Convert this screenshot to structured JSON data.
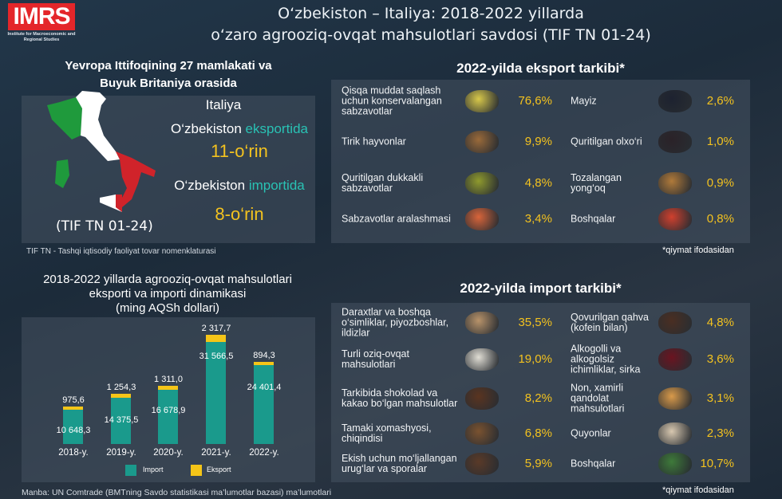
{
  "header": {
    "logo_text": "IMRS",
    "logo_sub": "Institute for Macroeconomic and Regional Studies",
    "title_line1": "O‘zbekiston – Italiya: 2018-2022 yillarda",
    "title_line2": "o‘zaro agrooziq-ovqat mahsulotlari savdosi (TIF TN 01-24)"
  },
  "ranking": {
    "heading_line1": "Yevropa Ittifoqining 27 mamlakati va",
    "heading_line2": "Buyuk Britaniya orasida",
    "country": "Italiya",
    "export_prefix": "O‘zbekiston ",
    "export_word": "eksportida",
    "export_rank": "11-o‘rin",
    "import_prefix": "O‘zbekiston ",
    "import_word": "importida",
    "import_rank": "8-o‘rin",
    "code": "(TIF TN 01-24)",
    "footnote": "TIF TN - Tashqi iqtisodiy faoliyat tovar nomenklaturasi"
  },
  "colors": {
    "import": "#1a9a8c",
    "export": "#f5c518",
    "pct": "#f3c21f",
    "teal_text": "#29c2b4"
  },
  "export_structure": {
    "title": "2022-yilda eksport tarkibi*",
    "footnote": "*qiymat ifodasidan",
    "items": [
      {
        "label": "Qisqa muddat saqlash uchun konservalangan sabzavotlar",
        "pct": "76,6%",
        "icon": "canned-food-icon",
        "color": "#d8c84a"
      },
      {
        "label": "Tirik hayvonlar",
        "pct": "9,9%",
        "icon": "livestock-icon",
        "color": "#9a6a3a"
      },
      {
        "label": "Quritilgan dukkakli sabzavotlar",
        "pct": "4,8%",
        "icon": "mung-beans-icon",
        "color": "#8f9a2e"
      },
      {
        "label": "Sabzavotlar aralashmasi",
        "pct": "3,4%",
        "icon": "mixed-vegetables-icon",
        "color": "#d8643a"
      },
      {
        "label": "Mayiz",
        "pct": "2,6%",
        "icon": "raisins-icon",
        "color": "#1d2230"
      },
      {
        "label": "Quritilgan olxo‘ri",
        "pct": "1,0%",
        "icon": "prunes-icon",
        "color": "#2a2228"
      },
      {
        "label": "Tozalangan yong‘oq",
        "pct": "0,9%",
        "icon": "walnut-icon",
        "color": "#b07a3a"
      },
      {
        "label": "Boshqalar",
        "pct": "0,8%",
        "icon": "fruits-icon",
        "color": "#d0402e"
      }
    ]
  },
  "import_structure": {
    "title": "2022-yilda import tarkibi*",
    "footnote": "*qiymat ifodasidan",
    "items": [
      {
        "label": "Daraxtlar va boshqa o‘simliklar, piyozboshlar, ildizlar",
        "pct": "35,5%",
        "icon": "bulbs-icon",
        "color": "#b8936a"
      },
      {
        "label": "Turli oziq-ovqat mahsulotlari",
        "pct": "19,0%",
        "icon": "powder-icon",
        "color": "#e0ddd4"
      },
      {
        "label": "Tarkibida shokolad va kakao bo‘lgan mahsulotlar",
        "pct": "8,2%",
        "icon": "chocolate-icon",
        "color": "#5a3420"
      },
      {
        "label": "Tamaki xomashyosi, chiqindisi",
        "pct": "6,8%",
        "icon": "tobacco-icon",
        "color": "#7a5230"
      },
      {
        "label": "Ekish uchun mo‘ljallangan urug‘lar va sporalar",
        "pct": "5,9%",
        "icon": "seeds-icon",
        "color": "#5a3a28"
      },
      {
        "label": "Qovurilgan qahva (kofein bilan)",
        "pct": "4,8%",
        "icon": "coffee-beans-icon",
        "color": "#4a2e22"
      },
      {
        "label": "Alkogolli va alkogolsiz ichimliklar, sirka",
        "pct": "3,6%",
        "icon": "wine-icon",
        "color": "#6a1420"
      },
      {
        "label": "Non, xamirli qandolat mahsulotlari",
        "pct": "3,1%",
        "icon": "pastry-icon",
        "color": "#d99a4a"
      },
      {
        "label": "Quyonlar",
        "pct": "2,3%",
        "icon": "rabbit-icon",
        "color": "#d8c8b0"
      },
      {
        "label": "Boshqalar",
        "pct": "10,7%",
        "icon": "grocery-basket-icon",
        "color": "#3e7a3a"
      }
    ]
  },
  "chart_data": {
    "type": "bar",
    "stacked": true,
    "title": "2018-2022 yillarda agrooziq-ovqat mahsulotlari eksporti va importi dinamikasi (ming AQSh dollari)",
    "title_line1": "2018-2022 yillarda agrooziq-ovqat mahsulotlari",
    "title_line2": "eksporti va importi dinamikasi",
    "title_line3": "(ming AQSh dollari)",
    "categories": [
      "2018-y.",
      "2019-y.",
      "2020-y.",
      "2021-y.",
      "2022-y."
    ],
    "series": [
      {
        "name": "Import",
        "values": [
          10648.3,
          14375.5,
          16678.9,
          31566.5,
          24401.4
        ],
        "labels": [
          "10 648,3",
          "14 375,5",
          "16 678,9",
          "31 566,5",
          "24 401,4"
        ]
      },
      {
        "name": "Eksport",
        "values": [
          975.6,
          1254.3,
          1311.0,
          2317.7,
          894.3
        ],
        "labels": [
          "975,6",
          "1 254,3",
          "1 311,0",
          "2 317,7",
          "894,3"
        ]
      }
    ],
    "ylim": [
      0,
      34000
    ],
    "grid": false,
    "legend": "bottom"
  },
  "source": "Manba: UN Comtrade (BMTning Savdo statistikasi ma’lumotlar bazasi) ma’lumotlari"
}
